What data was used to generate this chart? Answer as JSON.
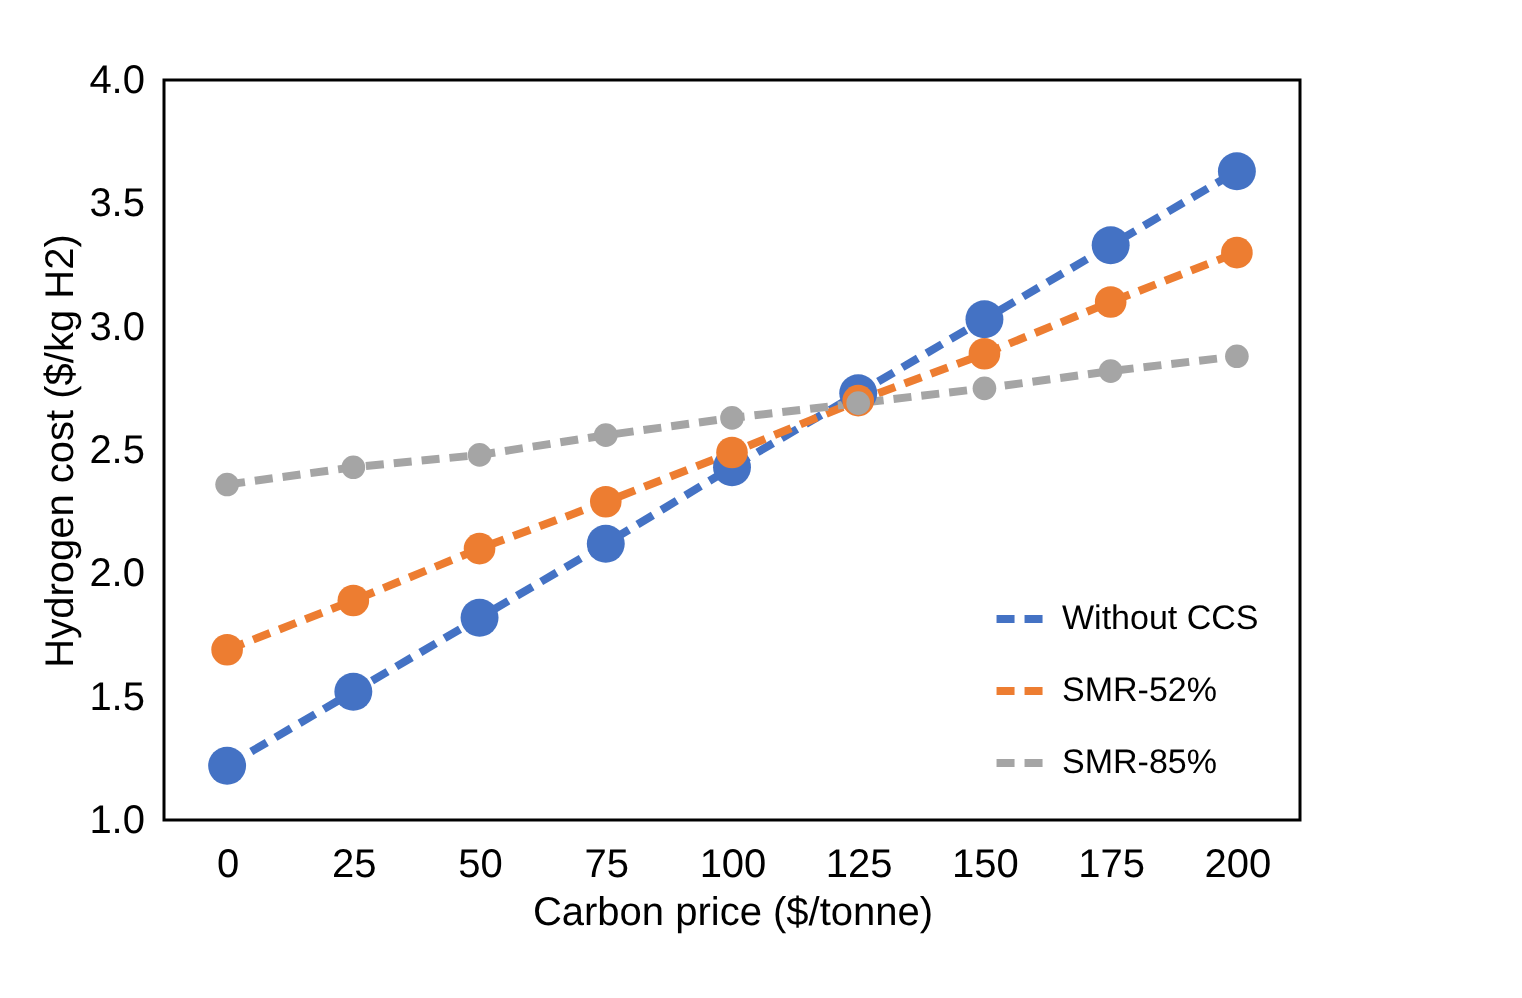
{
  "chart_data": {
    "type": "line",
    "xlabel": "Carbon price ($/tonne)",
    "ylabel": "Hydrogen cost ($/kg H2)",
    "categories": [
      "0",
      "25",
      "50",
      "75",
      "100",
      "125",
      "150",
      "175",
      "200"
    ],
    "series": [
      {
        "name": "Without CCS",
        "color": "#4472c4",
        "values": [
          1.22,
          1.52,
          1.82,
          2.12,
          2.43,
          2.73,
          3.03,
          3.33,
          3.63
        ]
      },
      {
        "name": "SMR-52%",
        "color": "#ed7d31",
        "values": [
          1.69,
          1.89,
          2.1,
          2.29,
          2.49,
          2.7,
          2.89,
          3.1,
          3.3
        ]
      },
      {
        "name": "SMR-85%",
        "color": "#a5a5a5",
        "values": [
          2.36,
          2.43,
          2.48,
          2.56,
          2.63,
          2.69,
          2.75,
          2.82,
          2.88
        ]
      }
    ],
    "ylim": [
      1.0,
      4.0
    ],
    "yticks": [
      {
        "value": 1.0,
        "label": "1.0"
      },
      {
        "value": 1.5,
        "label": "1.5"
      },
      {
        "value": 2.0,
        "label": "2.0"
      },
      {
        "value": 2.5,
        "label": "2.5"
      },
      {
        "value": 3.0,
        "label": "3.0"
      },
      {
        "value": 3.5,
        "label": "3.5"
      },
      {
        "value": 4.0,
        "label": "4.0"
      }
    ],
    "grid": false,
    "legend": "bottom right",
    "marker": "circle",
    "line_style": "dashed"
  }
}
